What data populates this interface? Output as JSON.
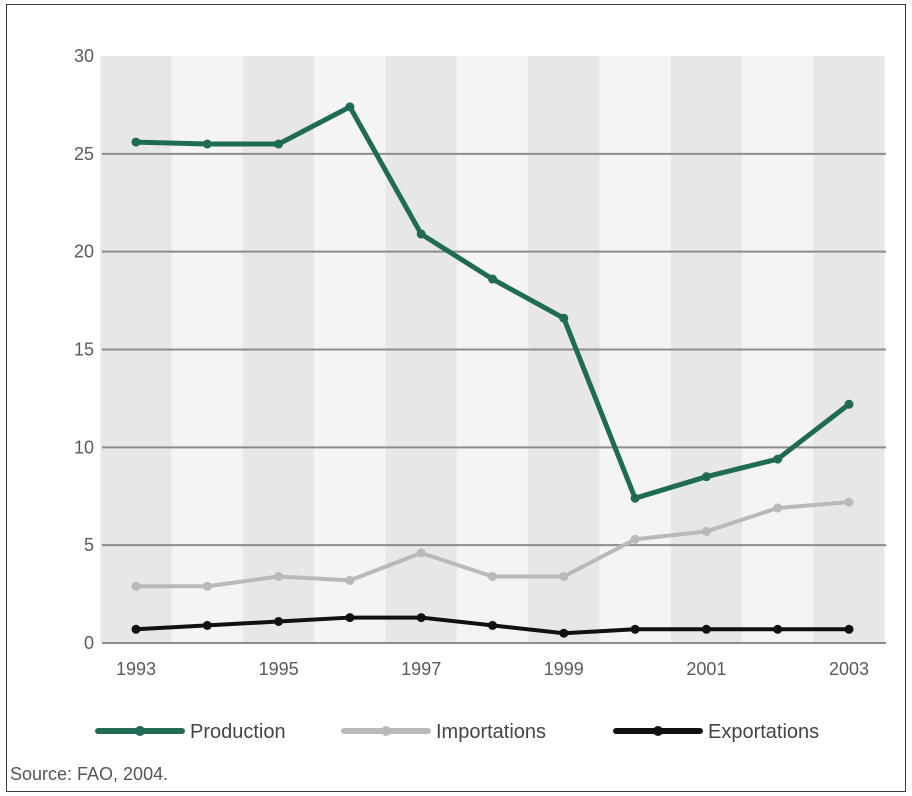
{
  "chart_data": {
    "type": "line",
    "x": [
      1993,
      1994,
      1995,
      1996,
      1997,
      1998,
      1999,
      2000,
      2001,
      2002,
      2003
    ],
    "x_tick_labels": [
      "1993",
      "1995",
      "1997",
      "1999",
      "2001",
      "2003"
    ],
    "y_tick_labels": [
      "0",
      "5",
      "10",
      "15",
      "20",
      "25",
      "30"
    ],
    "ylim": [
      0,
      30
    ],
    "grid": "horizontal",
    "legend_position": "bottom",
    "series": [
      {
        "name": "Production",
        "color": "#1f6b55",
        "values": [
          25.6,
          25.5,
          25.5,
          27.4,
          20.9,
          18.6,
          16.6,
          7.4,
          8.5,
          9.4,
          12.2
        ]
      },
      {
        "name": "Importations",
        "color": "#b9b9b9",
        "values": [
          2.9,
          2.9,
          3.4,
          3.2,
          4.6,
          3.4,
          3.4,
          5.3,
          5.7,
          6.9,
          7.2
        ]
      },
      {
        "name": "Exportations",
        "color": "#111111",
        "values": [
          0.7,
          0.9,
          1.1,
          1.3,
          1.3,
          0.9,
          0.5,
          0.7,
          0.7,
          0.7,
          0.7
        ]
      }
    ],
    "source": "Source: FAO, 2004."
  }
}
